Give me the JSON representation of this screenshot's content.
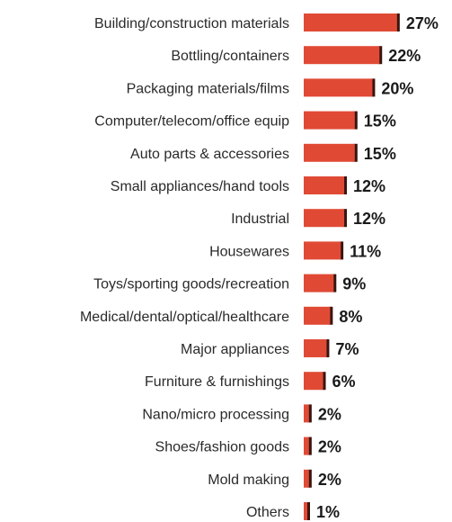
{
  "chart_data": {
    "type": "bar",
    "orientation": "horizontal",
    "categories": [
      "Building/construction materials",
      "Bottling/containers",
      "Packaging materials/films",
      "Computer/telecom/office equip",
      "Auto parts & accessories",
      "Small appliances/hand tools",
      "Industrial",
      "Housewares",
      "Toys/sporting goods/recreation",
      "Medical/dental/optical/healthcare",
      "Major appliances",
      "Furniture & furnishings",
      "Nano/micro processing",
      "Shoes/fashion goods",
      "Mold making",
      "Others"
    ],
    "values": [
      27,
      22,
      20,
      15,
      15,
      12,
      12,
      11,
      9,
      8,
      7,
      6,
      2,
      2,
      2,
      1
    ],
    "value_labels": [
      "27%",
      "22%",
      "20%",
      "15%",
      "15%",
      "12%",
      "12%",
      "11%",
      "9%",
      "8%",
      "7%",
      "6%",
      "2%",
      "2%",
      "2%",
      "1%"
    ],
    "title": "",
    "xlabel": "",
    "ylabel": "",
    "xlim": [
      0,
      27
    ],
    "grid": false,
    "legend": "none",
    "colors": {
      "bar": "#e04a35",
      "bar_shadow": "#3a1510"
    }
  }
}
